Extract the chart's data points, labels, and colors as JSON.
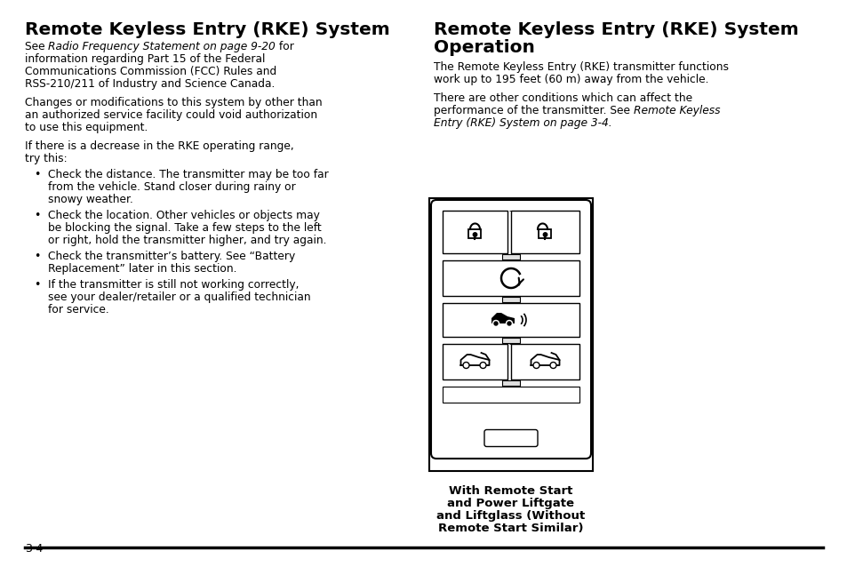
{
  "bg_color": "#ffffff",
  "text_color": "#000000",
  "page_number": "3-4",
  "left_title": "Remote Keyless Entry (RKE) System",
  "right_title_line1": "Remote Keyless Entry (RKE) System",
  "right_title_line2": "Operation",
  "caption_line1": "With Remote Start",
  "caption_line2": "and Power Liftgate",
  "caption_line3": "and Liftglass (Without",
  "caption_line4": "Remote Start Similar)"
}
